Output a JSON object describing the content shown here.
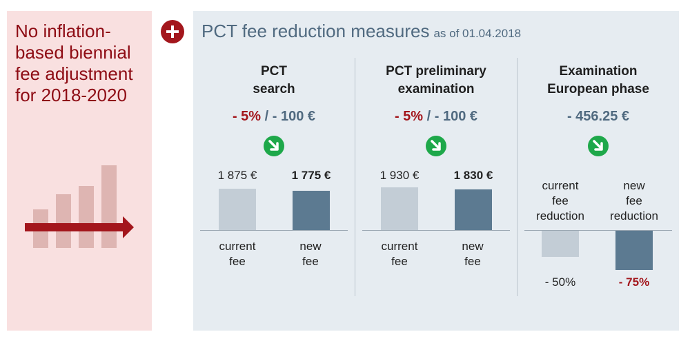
{
  "left": {
    "title": "No inflation-\nbased biennial\nfee adjustment\nfor 2018-2020"
  },
  "plus_icon": "plus-circle-icon",
  "main": {
    "title": "PCT fee reduction measures",
    "date": "as of 01.04.2018"
  },
  "columns": [
    {
      "heading": "PCT\nsearch",
      "reduction_red": "- 5%",
      "reduction_rest": " / - 100 €",
      "icon": "arrow-down-right-icon",
      "left_amount": "1 875 €",
      "right_amount": "1 775 €",
      "left_caption": "current\nfee",
      "right_caption": "new\nfee",
      "left_value": 1875,
      "right_value": 1775
    },
    {
      "heading": "PCT preliminary\nexamination",
      "reduction_red": "- 5%",
      "reduction_rest": " / - 100 €",
      "icon": "arrow-down-right-icon",
      "left_amount": "1 930 €",
      "right_amount": "1 830 €",
      "left_caption": "current\nfee",
      "right_caption": "new\nfee",
      "left_value": 1930,
      "right_value": 1830
    },
    {
      "heading": "Examination\nEuropean phase",
      "reduction_red": "",
      "reduction_rest": "- 456.25 €",
      "icon": "arrow-down-right-icon",
      "left_caption": "current\nfee\nreduction",
      "right_caption": "new\nfee\nreduction",
      "left_pct": "- 50%",
      "right_pct": "- 75%",
      "left_value": -50,
      "right_value": -75
    }
  ],
  "colors": {
    "accent_red": "#a3161c",
    "panel_blue": "#e6ecf1",
    "panel_pink": "#f9e0e0",
    "bar_light": "#c3cdd6",
    "bar_dark": "#5c7a91",
    "arrow_green": "#1ea84a"
  }
}
